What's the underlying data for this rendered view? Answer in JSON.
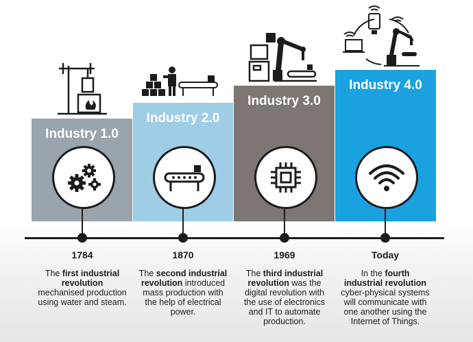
{
  "stages": [
    {
      "title": "Industry 1.0",
      "year": "1784",
      "desc": {
        "pre": "The ",
        "bold": "first industrial revolution",
        "post": " mechanised production using water and steam."
      },
      "icon": "gears-icon",
      "illustration": "steam-engine-icon",
      "color": "#9aa4ac"
    },
    {
      "title": "Industry 2.0",
      "year": "1870",
      "desc": {
        "pre": "The ",
        "bold": "second industrial revolution",
        "post": " introduced mass production with the help of electrical power."
      },
      "icon": "conveyor-belt-icon",
      "illustration": "assembly-line-icon",
      "color": "#9fcde6"
    },
    {
      "title": "Industry 3.0",
      "year": "1969",
      "desc": {
        "pre": "The ",
        "bold": "third industrial revolution",
        "post": " was the digital revolution with the use of electronics and IT to automate production."
      },
      "icon": "microchip-icon",
      "illustration": "robot-arm-computer-icon",
      "color": "#7e7673"
    },
    {
      "title": "Industry 4.0",
      "year": "Today",
      "desc": {
        "pre": "In the ",
        "bold": "fourth industrial revolution",
        "post": " cyber-physical systems will communicate with one another using the Internet of Things."
      },
      "icon": "wifi-icon",
      "illustration": "connected-devices-icon",
      "color": "#1aa1e0"
    }
  ]
}
